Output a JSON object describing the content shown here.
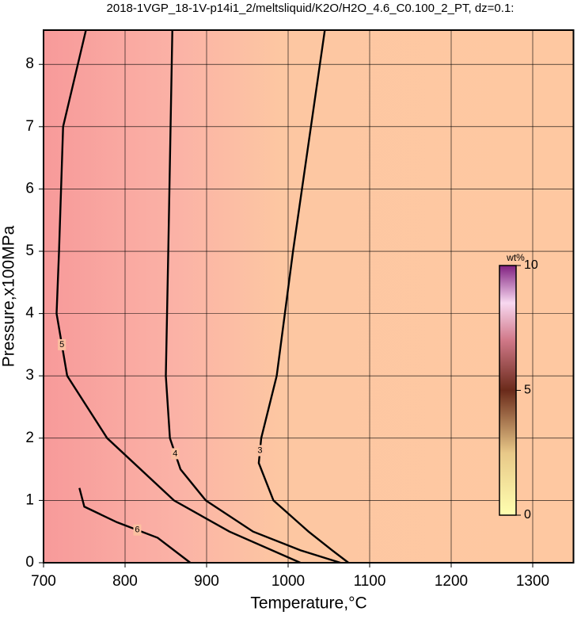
{
  "chart_data": {
    "type": "contour",
    "title": "2018-1VGP_18-1V-p14i1_2/meltsliquid/K2O/H2O_4.6_C0.100_2_PT, dz=0.1:",
    "x_label": "Temperature,°C",
    "y_label": "Pressure,x100MPa",
    "xlim": [
      700,
      1350
    ],
    "ylim": [
      0,
      8.55
    ],
    "xticks": [
      700,
      800,
      900,
      1000,
      1100,
      1200,
      1300
    ],
    "yticks": [
      0,
      1,
      2,
      3,
      4,
      5,
      6,
      7,
      8
    ],
    "grid": true,
    "contours": [
      {
        "level": 3,
        "x": [
          1045,
          1006,
          986,
          967,
          964,
          982,
          1025,
          1054,
          1074
        ],
        "y": [
          8.55,
          5,
          3,
          2,
          1.6,
          1,
          0.5,
          0.2,
          0
        ]
      },
      {
        "level": 4,
        "x": [
          858,
          853,
          850,
          855,
          868,
          899,
          957,
          1015,
          1064
        ],
        "y": [
          8.55,
          5,
          3,
          2,
          1.5,
          1,
          0.5,
          0.2,
          0
        ]
      },
      {
        "level": 5,
        "x": [
          752,
          724,
          719,
          716,
          729,
          778,
          860,
          928,
          1015
        ],
        "y": [
          8.55,
          7,
          5,
          4,
          3,
          2,
          1,
          0.5,
          0
        ]
      },
      {
        "level": 6,
        "x": [
          744,
          750,
          790,
          840,
          870,
          880
        ],
        "y": [
          1.2,
          0.9,
          0.65,
          0.4,
          0.1,
          0
        ]
      }
    ],
    "colorbar": {
      "label": "wt%",
      "lim": [
        0,
        10
      ],
      "ticks": [
        0,
        5,
        10
      ]
    }
  }
}
